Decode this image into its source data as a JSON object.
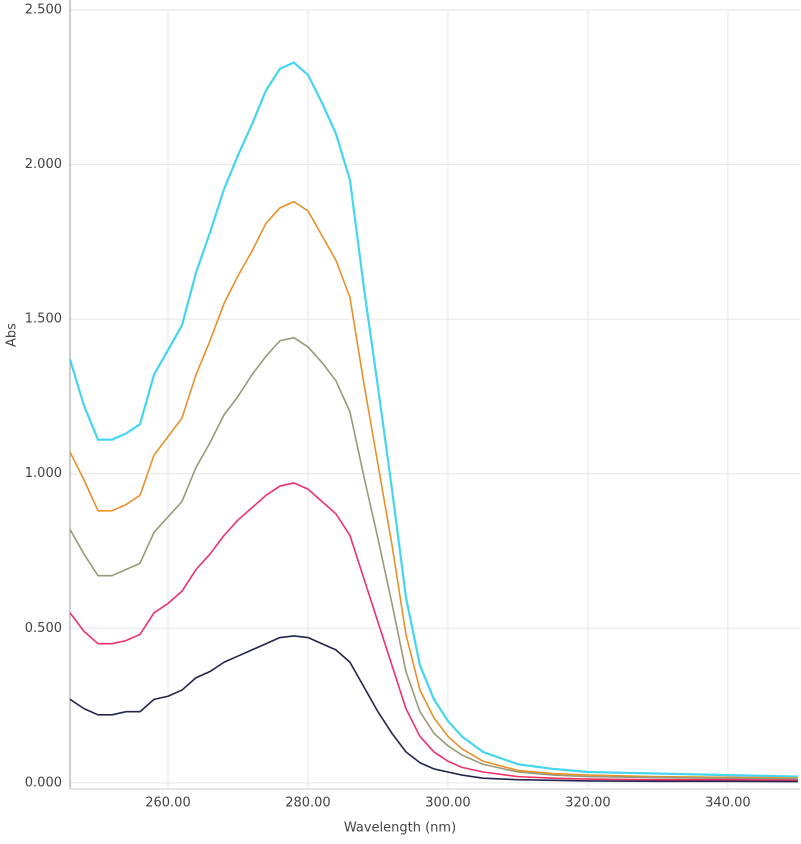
{
  "chart_data": {
    "type": "line",
    "x_label": "Wavelength (nm)",
    "y_label": "Abs",
    "x": [
      246,
      248,
      250,
      252,
      254,
      256,
      258,
      260,
      262,
      264,
      266,
      268,
      270,
      272,
      274,
      276,
      278,
      280,
      282,
      284,
      286,
      288,
      290,
      292,
      294,
      296,
      298,
      300,
      302,
      305,
      310,
      315,
      320,
      330,
      340,
      350
    ],
    "series": [
      {
        "color": "#44d6f0",
        "values": [
          1.37,
          1.22,
          1.11,
          1.11,
          1.13,
          1.16,
          1.32,
          1.4,
          1.48,
          1.65,
          1.78,
          1.92,
          2.03,
          2.13,
          2.24,
          2.31,
          2.33,
          2.29,
          2.2,
          2.1,
          1.95,
          1.6,
          1.28,
          0.95,
          0.6,
          0.38,
          0.27,
          0.2,
          0.15,
          0.1,
          0.06,
          0.045,
          0.035,
          0.03,
          0.025,
          0.02
        ]
      },
      {
        "color": "#e8902a",
        "values": [
          1.07,
          0.98,
          0.88,
          0.88,
          0.9,
          0.93,
          1.06,
          1.12,
          1.18,
          1.32,
          1.43,
          1.55,
          1.64,
          1.72,
          1.81,
          1.86,
          1.88,
          1.85,
          1.77,
          1.69,
          1.57,
          1.29,
          1.03,
          0.77,
          0.48,
          0.3,
          0.21,
          0.15,
          0.11,
          0.07,
          0.04,
          0.03,
          0.025,
          0.02,
          0.018,
          0.015
        ]
      },
      {
        "color": "#9a9a78",
        "values": [
          0.82,
          0.74,
          0.67,
          0.67,
          0.69,
          0.71,
          0.81,
          0.86,
          0.91,
          1.02,
          1.1,
          1.19,
          1.25,
          1.32,
          1.38,
          1.43,
          1.44,
          1.41,
          1.36,
          1.3,
          1.2,
          0.99,
          0.79,
          0.58,
          0.36,
          0.23,
          0.16,
          0.12,
          0.09,
          0.06,
          0.035,
          0.025,
          0.02,
          0.017,
          0.015,
          0.012
        ]
      },
      {
        "color": "#f0306a",
        "values": [
          0.55,
          0.49,
          0.45,
          0.45,
          0.46,
          0.48,
          0.55,
          0.58,
          0.62,
          0.69,
          0.74,
          0.8,
          0.85,
          0.89,
          0.93,
          0.96,
          0.97,
          0.95,
          0.91,
          0.87,
          0.8,
          0.66,
          0.52,
          0.38,
          0.24,
          0.15,
          0.1,
          0.07,
          0.05,
          0.035,
          0.02,
          0.015,
          0.012,
          0.01,
          0.01,
          0.008
        ]
      },
      {
        "color": "#23254e",
        "values": [
          0.27,
          0.24,
          0.22,
          0.22,
          0.23,
          0.23,
          0.27,
          0.28,
          0.3,
          0.34,
          0.36,
          0.39,
          0.41,
          0.43,
          0.45,
          0.47,
          0.475,
          0.47,
          0.45,
          0.43,
          0.39,
          0.31,
          0.23,
          0.16,
          0.1,
          0.065,
          0.045,
          0.035,
          0.025,
          0.015,
          0.01,
          0.008,
          0.006,
          0.005,
          0.005,
          0.004
        ]
      }
    ],
    "xlim": [
      246,
      350.3
    ],
    "ylim": [
      -0.02,
      2.5
    ],
    "xticks": [
      {
        "value": 260,
        "label": "260.00"
      },
      {
        "value": 280,
        "label": "280.00"
      },
      {
        "value": 300,
        "label": "300.00"
      },
      {
        "value": 320,
        "label": "320.00"
      },
      {
        "value": 340,
        "label": "340.00"
      }
    ],
    "yticks": [
      {
        "value": 0,
        "label": "0.000"
      },
      {
        "value": 0.5,
        "label": "0.500"
      },
      {
        "value": 1,
        "label": "1.000"
      },
      {
        "value": 1.5,
        "label": "1.500"
      },
      {
        "value": 2,
        "label": "2.000"
      },
      {
        "value": 2.5,
        "label": "2.500"
      }
    ],
    "grid": true
  }
}
